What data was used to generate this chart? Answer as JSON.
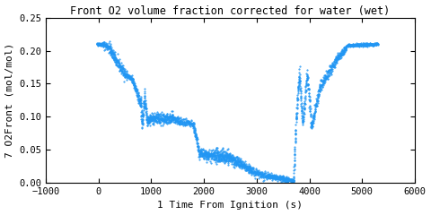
{
  "title": "Front O2 volume fraction corrected for water (wet)",
  "xlabel": "1 Time From Ignition (s)",
  "ylabel": "7 O2Front (mol/mol)",
  "xlim": [
    -1000,
    6000
  ],
  "ylim": [
    0,
    0.25
  ],
  "xticks": [
    -1000,
    0,
    1000,
    2000,
    3000,
    4000,
    5000,
    6000
  ],
  "yticks": [
    0,
    0.05,
    0.1,
    0.15,
    0.2,
    0.25
  ],
  "line_color": "#2196F3",
  "bg_color": "#ffffff",
  "title_fontsize": 8.5,
  "label_fontsize": 8,
  "tick_fontsize": 7.5
}
